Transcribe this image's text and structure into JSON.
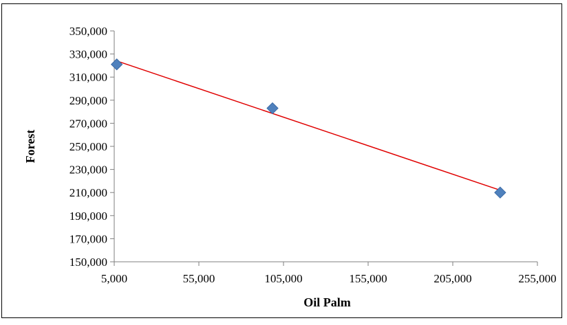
{
  "chart_data": {
    "type": "scatter",
    "title": "",
    "xlabel": "Oil Palm",
    "ylabel": "Forest",
    "xlim": [
      5000,
      255000
    ],
    "ylim": [
      150000,
      350000
    ],
    "x_ticks": [
      "5,000",
      "55,000",
      "105,000",
      "155,000",
      "205,000",
      "255,000"
    ],
    "y_ticks": [
      "150,000",
      "170,000",
      "190,000",
      "210,000",
      "230,000",
      "250,000",
      "270,000",
      "290,000",
      "310,000",
      "330,000",
      "350,000"
    ],
    "x_tick_values": [
      5000,
      55000,
      105000,
      155000,
      205000,
      255000
    ],
    "y_tick_values": [
      150000,
      170000,
      190000,
      210000,
      230000,
      250000,
      270000,
      290000,
      310000,
      330000,
      350000
    ],
    "grid": false,
    "legend": "none",
    "series": [
      {
        "points": [
          {
            "x": 6500,
            "y": 321000
          },
          {
            "x": 98500,
            "y": 283000
          },
          {
            "x": 233000,
            "y": 210000
          }
        ],
        "marker": "diamond",
        "color": "#4F81BD"
      }
    ],
    "trendline": {
      "type": "linear",
      "color": "#E00000",
      "from": {
        "x": 6500,
        "y": 324000
      },
      "to": {
        "x": 233000,
        "y": 212000
      }
    }
  }
}
